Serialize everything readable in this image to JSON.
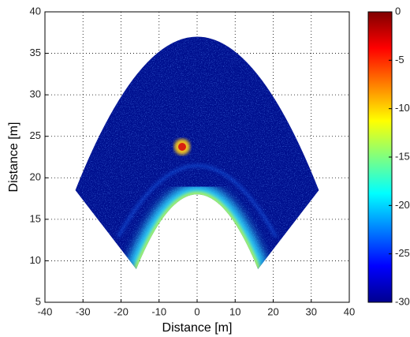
{
  "chart_data": {
    "type": "heatmap",
    "xlabel": "Distance [m]",
    "ylabel": "Distance [m]",
    "xlim": [
      -40,
      40
    ],
    "xticks": [
      -40,
      -30,
      -20,
      -10,
      0,
      10,
      20,
      30,
      40
    ],
    "ylim": [
      5,
      40
    ],
    "yticks": [
      5,
      10,
      15,
      20,
      25,
      30,
      35,
      40
    ],
    "grid": true,
    "colorbar": {
      "lim": [
        -30,
        0
      ],
      "ticks": [
        0,
        -5,
        -10,
        -15,
        -20,
        -25,
        -30
      ],
      "colormap": "jet"
    }
  }
}
